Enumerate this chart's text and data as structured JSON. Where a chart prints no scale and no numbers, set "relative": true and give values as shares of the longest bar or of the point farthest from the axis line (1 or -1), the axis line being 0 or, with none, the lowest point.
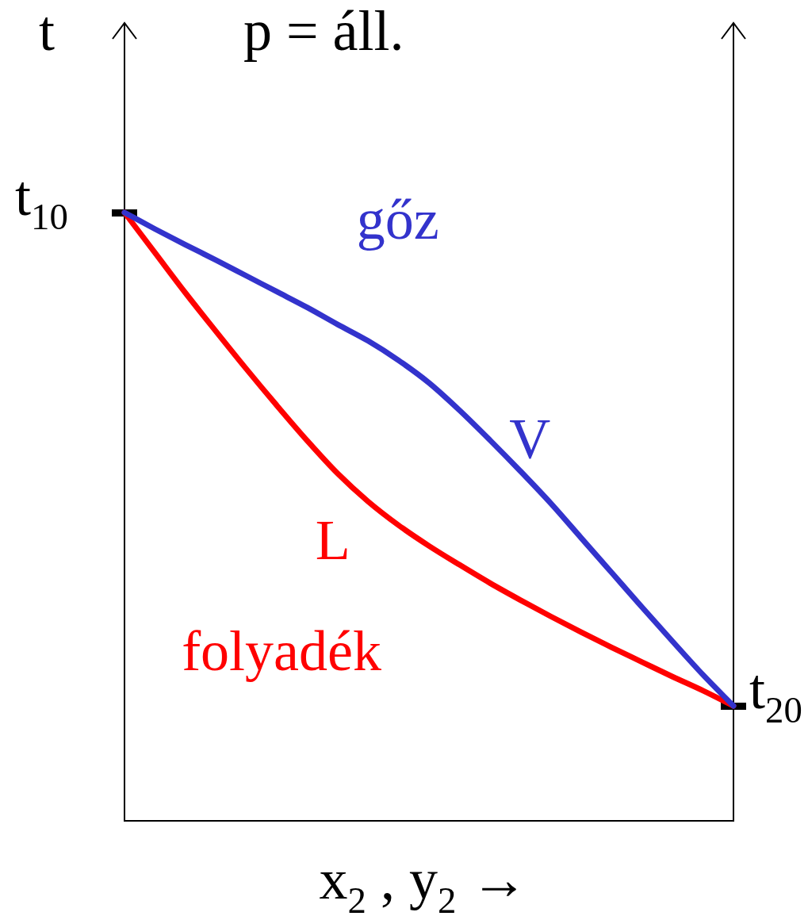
{
  "chart_data": {
    "type": "line",
    "title": "p = áll.",
    "xlabel": "x$_{2}$ , y$_{2}$ →",
    "ylabel": "t",
    "relative": true,
    "categories": [
      null,
      null,
      null,
      null,
      null,
      null,
      null,
      null,
      null,
      null,
      null,
      null,
      null,
      null,
      null,
      null,
      null,
      null,
      null,
      null,
      null
    ],
    "series": [
      {
        "name": "V",
        "color": "#3333cc",
        "values": [
          1,
          0.973,
          0.947,
          0.922,
          0.896,
          0.87,
          0.844,
          0.816,
          0.789,
          0.757,
          0.72,
          0.675,
          0.626,
          0.575,
          0.522,
          0.465,
          0.408,
          0.351,
          0.295,
          0.24,
          0.189
        ]
      },
      {
        "name": "L",
        "color": "#ff0000",
        "values": [
          1,
          0.934,
          0.868,
          0.805,
          0.743,
          0.683,
          0.625,
          0.571,
          0.525,
          0.486,
          0.452,
          0.421,
          0.391,
          0.363,
          0.336,
          0.31,
          0.285,
          0.261,
          0.237,
          0.214,
          0.189
        ]
      }
    ],
    "annotations": [
      "gőz",
      "folyadék",
      "t$_{10}$",
      "t$_{20}$"
    ]
  }
}
